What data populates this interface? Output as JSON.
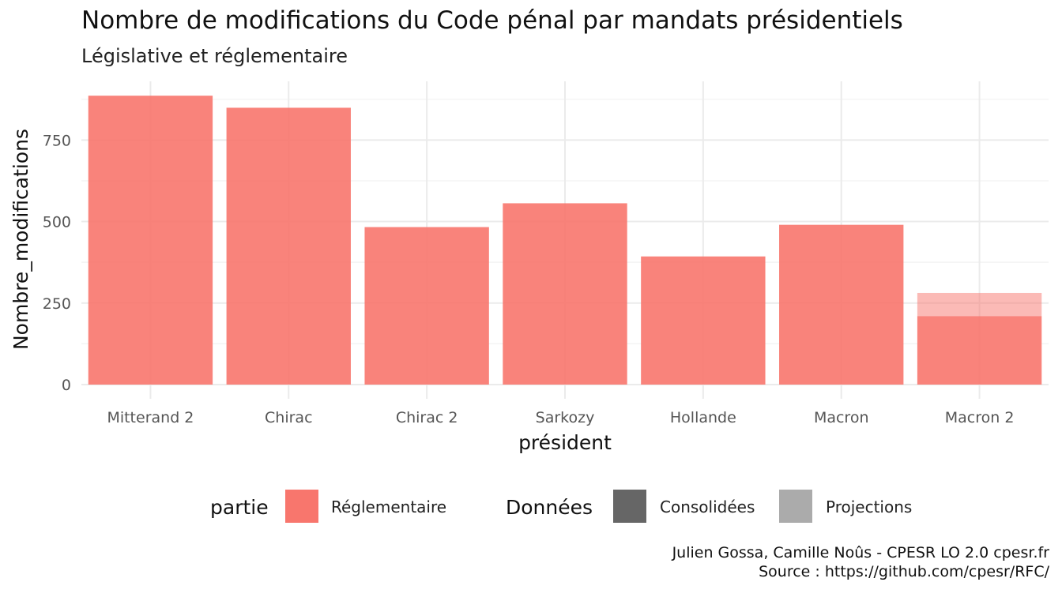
{
  "chart_data": {
    "type": "bar",
    "title": "Nombre de modifications du Code pénal par mandats présidentiels",
    "subtitle": "Législative et réglementaire",
    "xlabel": "président",
    "ylabel": "Nombre_modifications",
    "categories": [
      "Mitterand 2",
      "Chirac",
      "Chirac 2",
      "Sarkozy",
      "Hollande",
      "Macron",
      "Macron 2"
    ],
    "series": [
      {
        "name": "Consolidées",
        "values": [
          886,
          849,
          483,
          556,
          393,
          490,
          210
        ]
      },
      {
        "name": "Projections",
        "values": [
          0,
          0,
          0,
          0,
          0,
          0,
          71
        ]
      }
    ],
    "y_ticks": [
      0,
      250,
      500,
      750
    ],
    "ylim": [
      0,
      930
    ],
    "grid": true,
    "legend_position": "bottom",
    "fill_color": "#F8766D",
    "consolidated_alpha": 0.9,
    "projection_alpha": 0.5
  },
  "legend": {
    "partie_title": "partie",
    "partie_items": [
      {
        "label": "Réglementaire",
        "color": "#F8766D"
      }
    ],
    "donnees_title": "Données",
    "donnees_items": [
      {
        "label": "Consolidées",
        "color": "#666666"
      },
      {
        "label": "Projections",
        "color": "#ababab"
      }
    ]
  },
  "caption": {
    "line1": "Julien Gossa, Camille Noûs - CPESR LO 2.0 cpesr.fr",
    "line2": "Source : https://github.com/cpesr/RFC/"
  }
}
